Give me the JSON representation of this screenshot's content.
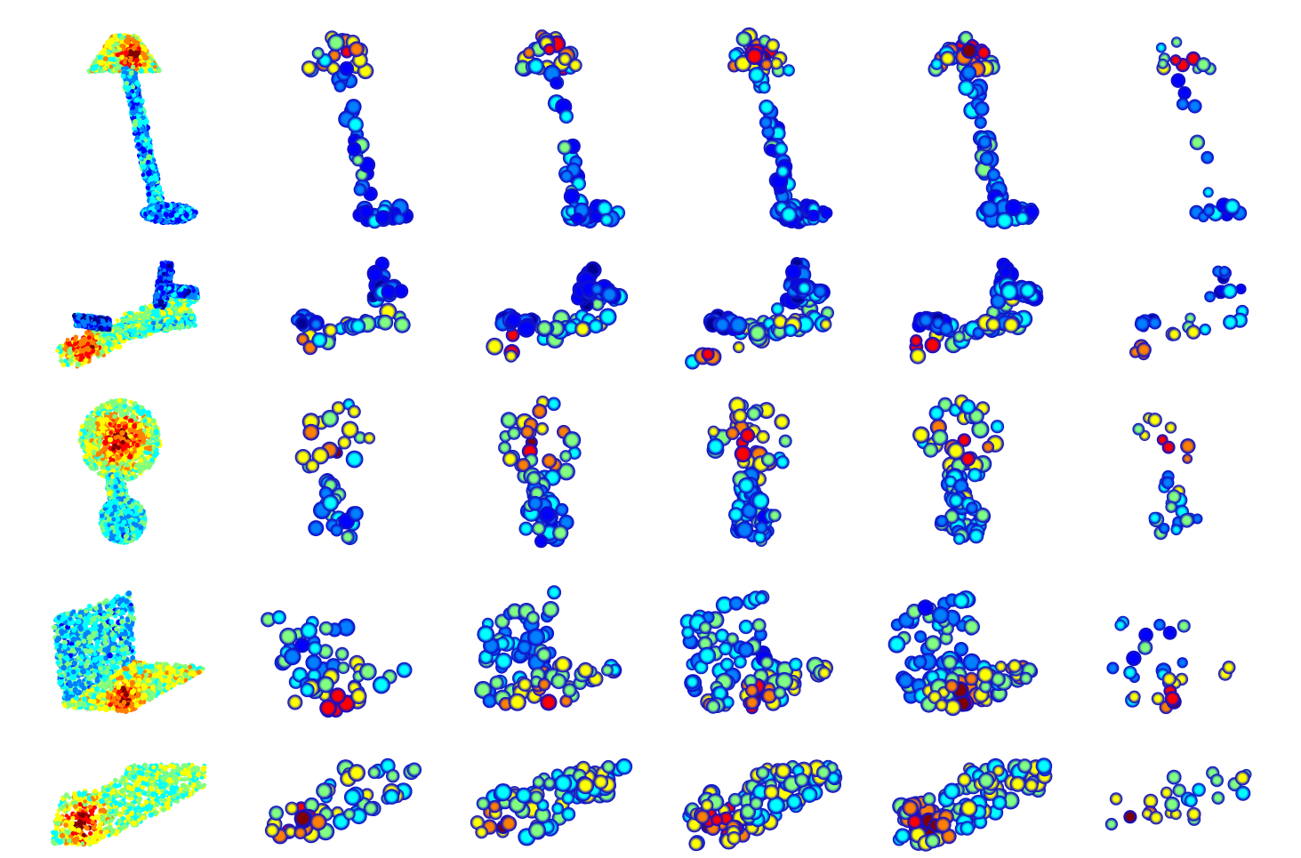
{
  "figure": {
    "rows": [
      {
        "object": "lamp"
      },
      {
        "object": "airplane"
      },
      {
        "object": "plant"
      },
      {
        "object": "chair"
      },
      {
        "object": "car"
      }
    ],
    "columns": 6,
    "colormap": [
      "#00008f",
      "#0000ff",
      "#0080ff",
      "#00ffff",
      "#80ff80",
      "#ffff00",
      "#ff8000",
      "#ff0000",
      "#800000"
    ]
  }
}
